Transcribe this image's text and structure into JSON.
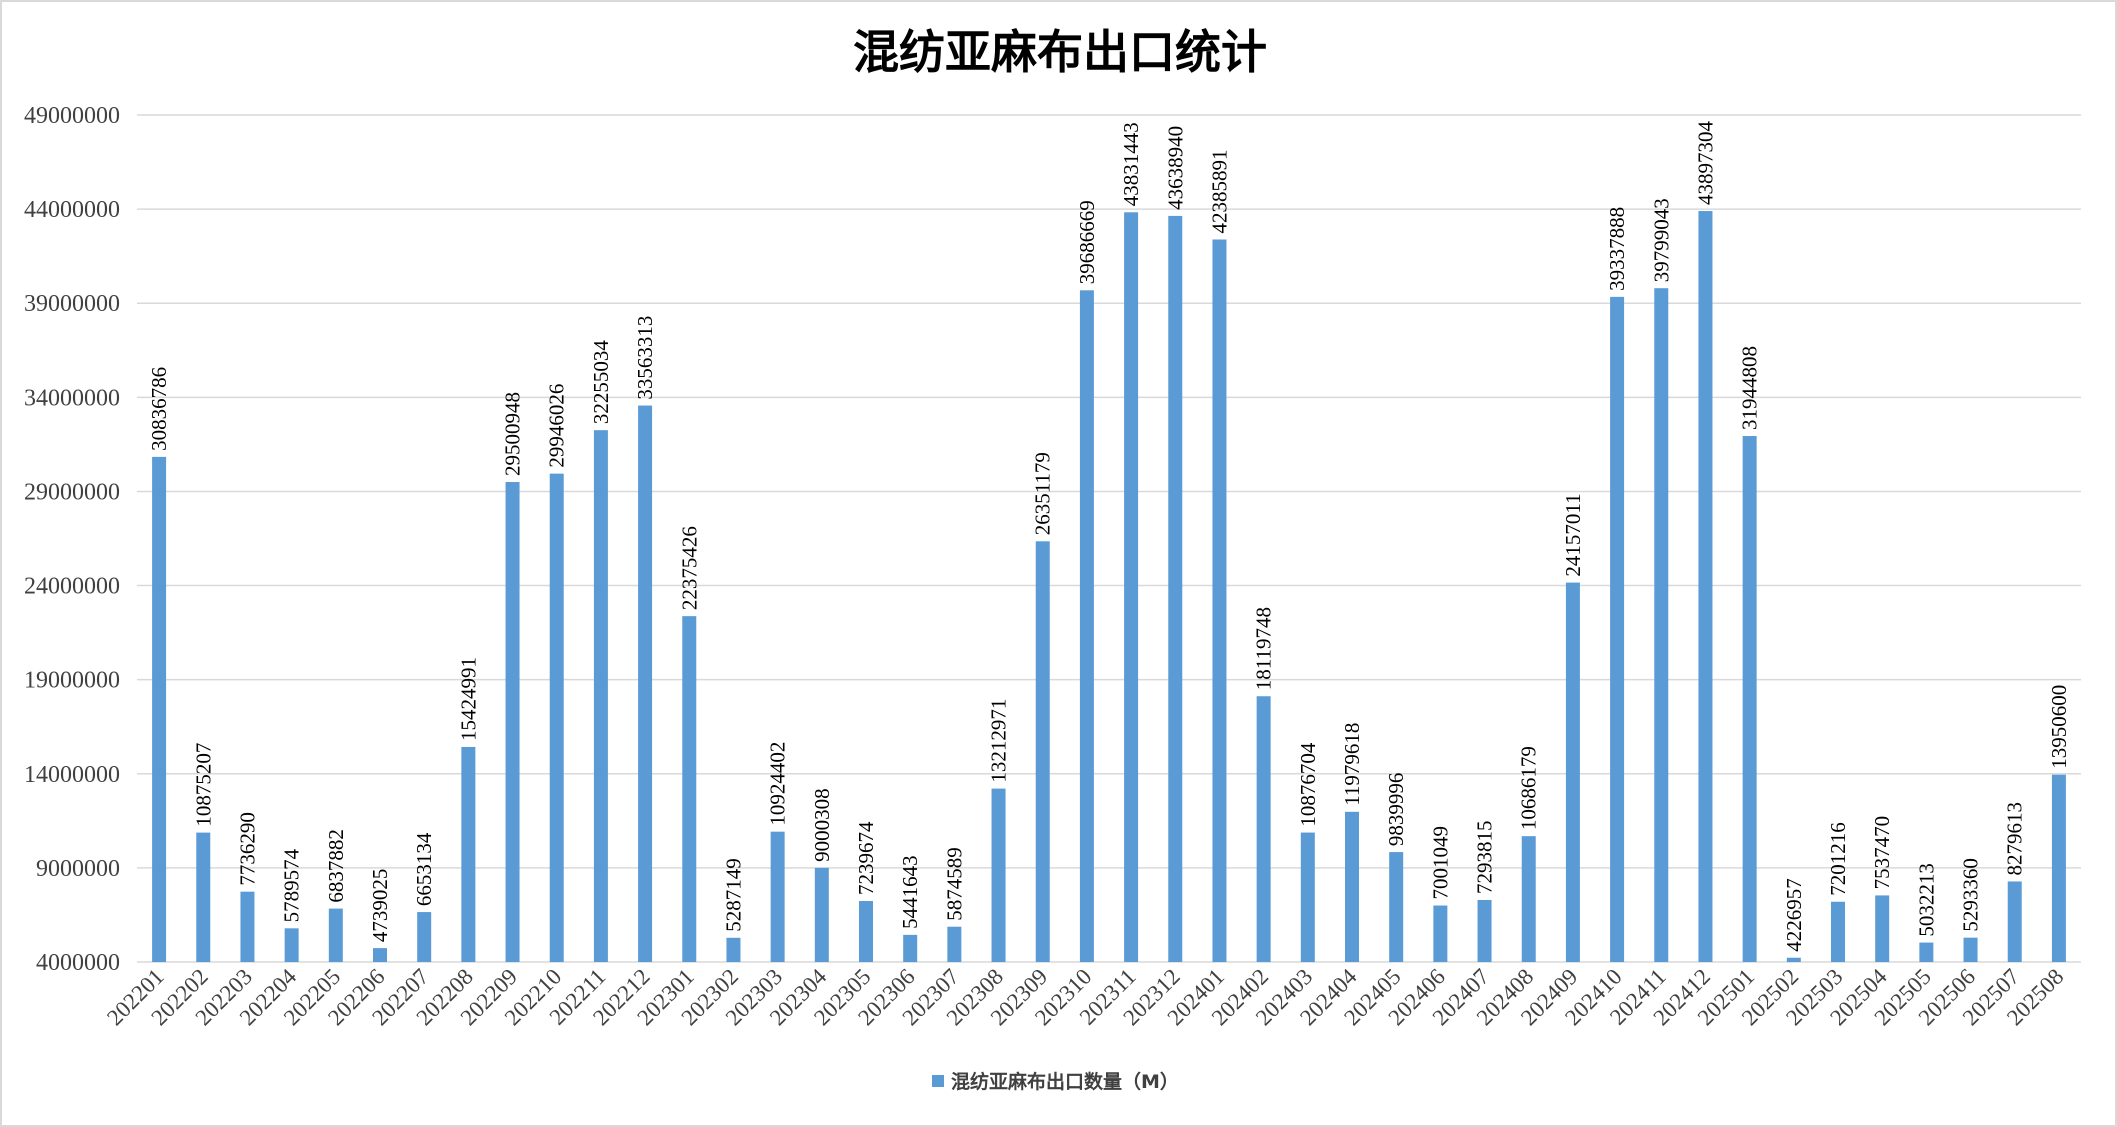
{
  "chart_data": {
    "type": "bar",
    "title": "混纺亚麻布出口统计",
    "xlabel": "",
    "ylabel": "",
    "ylim": [
      4000000,
      49000000
    ],
    "ytick_step": 5000000,
    "yticks": [
      "4000000",
      "9000000",
      "14000000",
      "19000000",
      "24000000",
      "29000000",
      "34000000",
      "39000000",
      "44000000",
      "49000000"
    ],
    "grid": true,
    "legend_position": "bottom",
    "color": "#5B9BD5",
    "categories": [
      "202201",
      "202202",
      "202203",
      "202204",
      "202205",
      "202206",
      "202207",
      "202208",
      "202209",
      "202210",
      "202211",
      "202212",
      "202301",
      "202302",
      "202303",
      "202304",
      "202305",
      "202306",
      "202307",
      "202308",
      "202309",
      "202310",
      "202311",
      "202312",
      "202401",
      "202402",
      "202403",
      "202404",
      "202405",
      "202406",
      "202407",
      "202408",
      "202409",
      "202410",
      "202411",
      "202412",
      "202501",
      "202502",
      "202503",
      "202504",
      "202505",
      "202506",
      "202507",
      "202508"
    ],
    "series": [
      {
        "name": "混纺亚麻布出口数量（M）",
        "values": [
          30836786,
          10875207,
          7736290,
          5789574,
          6837882,
          4739025,
          6653134,
          15424991,
          29500948,
          29946026,
          32255034,
          33563313,
          22375426,
          5287149,
          10924402,
          9000308,
          7239674,
          5441643,
          5874589,
          13212971,
          26351179,
          39686669,
          43831443,
          43638940,
          42385891,
          18119748,
          10876704,
          11979618,
          9839996,
          7001049,
          7293815,
          10686179,
          24157011,
          39337888,
          39799043,
          43897304,
          31944808,
          4226957,
          7201216,
          7537470,
          5032213,
          5293360,
          8279613,
          13950600
        ]
      }
    ]
  }
}
